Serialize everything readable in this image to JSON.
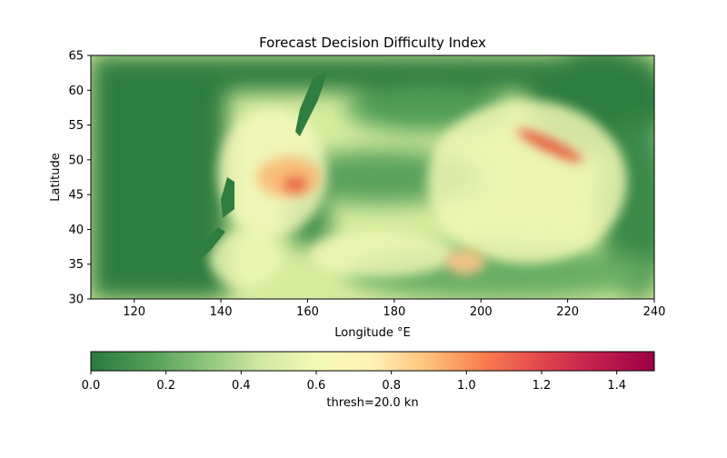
{
  "chart_data": {
    "type": "heatmap",
    "title": "Forecast Decision Difficulty Index",
    "xlabel": "Longitude °E",
    "ylabel": "Latitude",
    "xlim": [
      110,
      240
    ],
    "ylim": [
      30,
      65
    ],
    "x_ticks": [
      120,
      140,
      160,
      180,
      200,
      220,
      240
    ],
    "y_ticks": [
      30,
      35,
      40,
      45,
      50,
      55,
      60,
      65
    ],
    "colorbar": {
      "label": "thresh=20.0 kn",
      "min": 0.0,
      "max": 1.5,
      "ticks": [
        "0.0",
        "0.2",
        "0.4",
        "0.6",
        "0.8",
        "1.0",
        "1.2",
        "1.4"
      ],
      "tick_values": [
        0.0,
        0.2,
        0.4,
        0.6,
        0.8,
        1.0,
        1.2,
        1.4
      ],
      "colormap": "RdYlGn_r"
    },
    "colormap_stops": [
      "#2b7a3f",
      "#a6d96a",
      "#ffffbf",
      "#fdae61",
      "#d7301f",
      "#a50026",
      "#9c0045"
    ],
    "land_color": "#2b7a3f",
    "highlight_regions": [
      {
        "label": "",
        "center_lon": 155,
        "center_lat": 48,
        "peak": 1.0
      },
      {
        "label": "",
        "center_lon": 215,
        "center_lat": 51,
        "peak": 1.15
      },
      {
        "label": "",
        "center_lon": 197,
        "center_lat": 35,
        "peak": 0.9
      }
    ]
  }
}
